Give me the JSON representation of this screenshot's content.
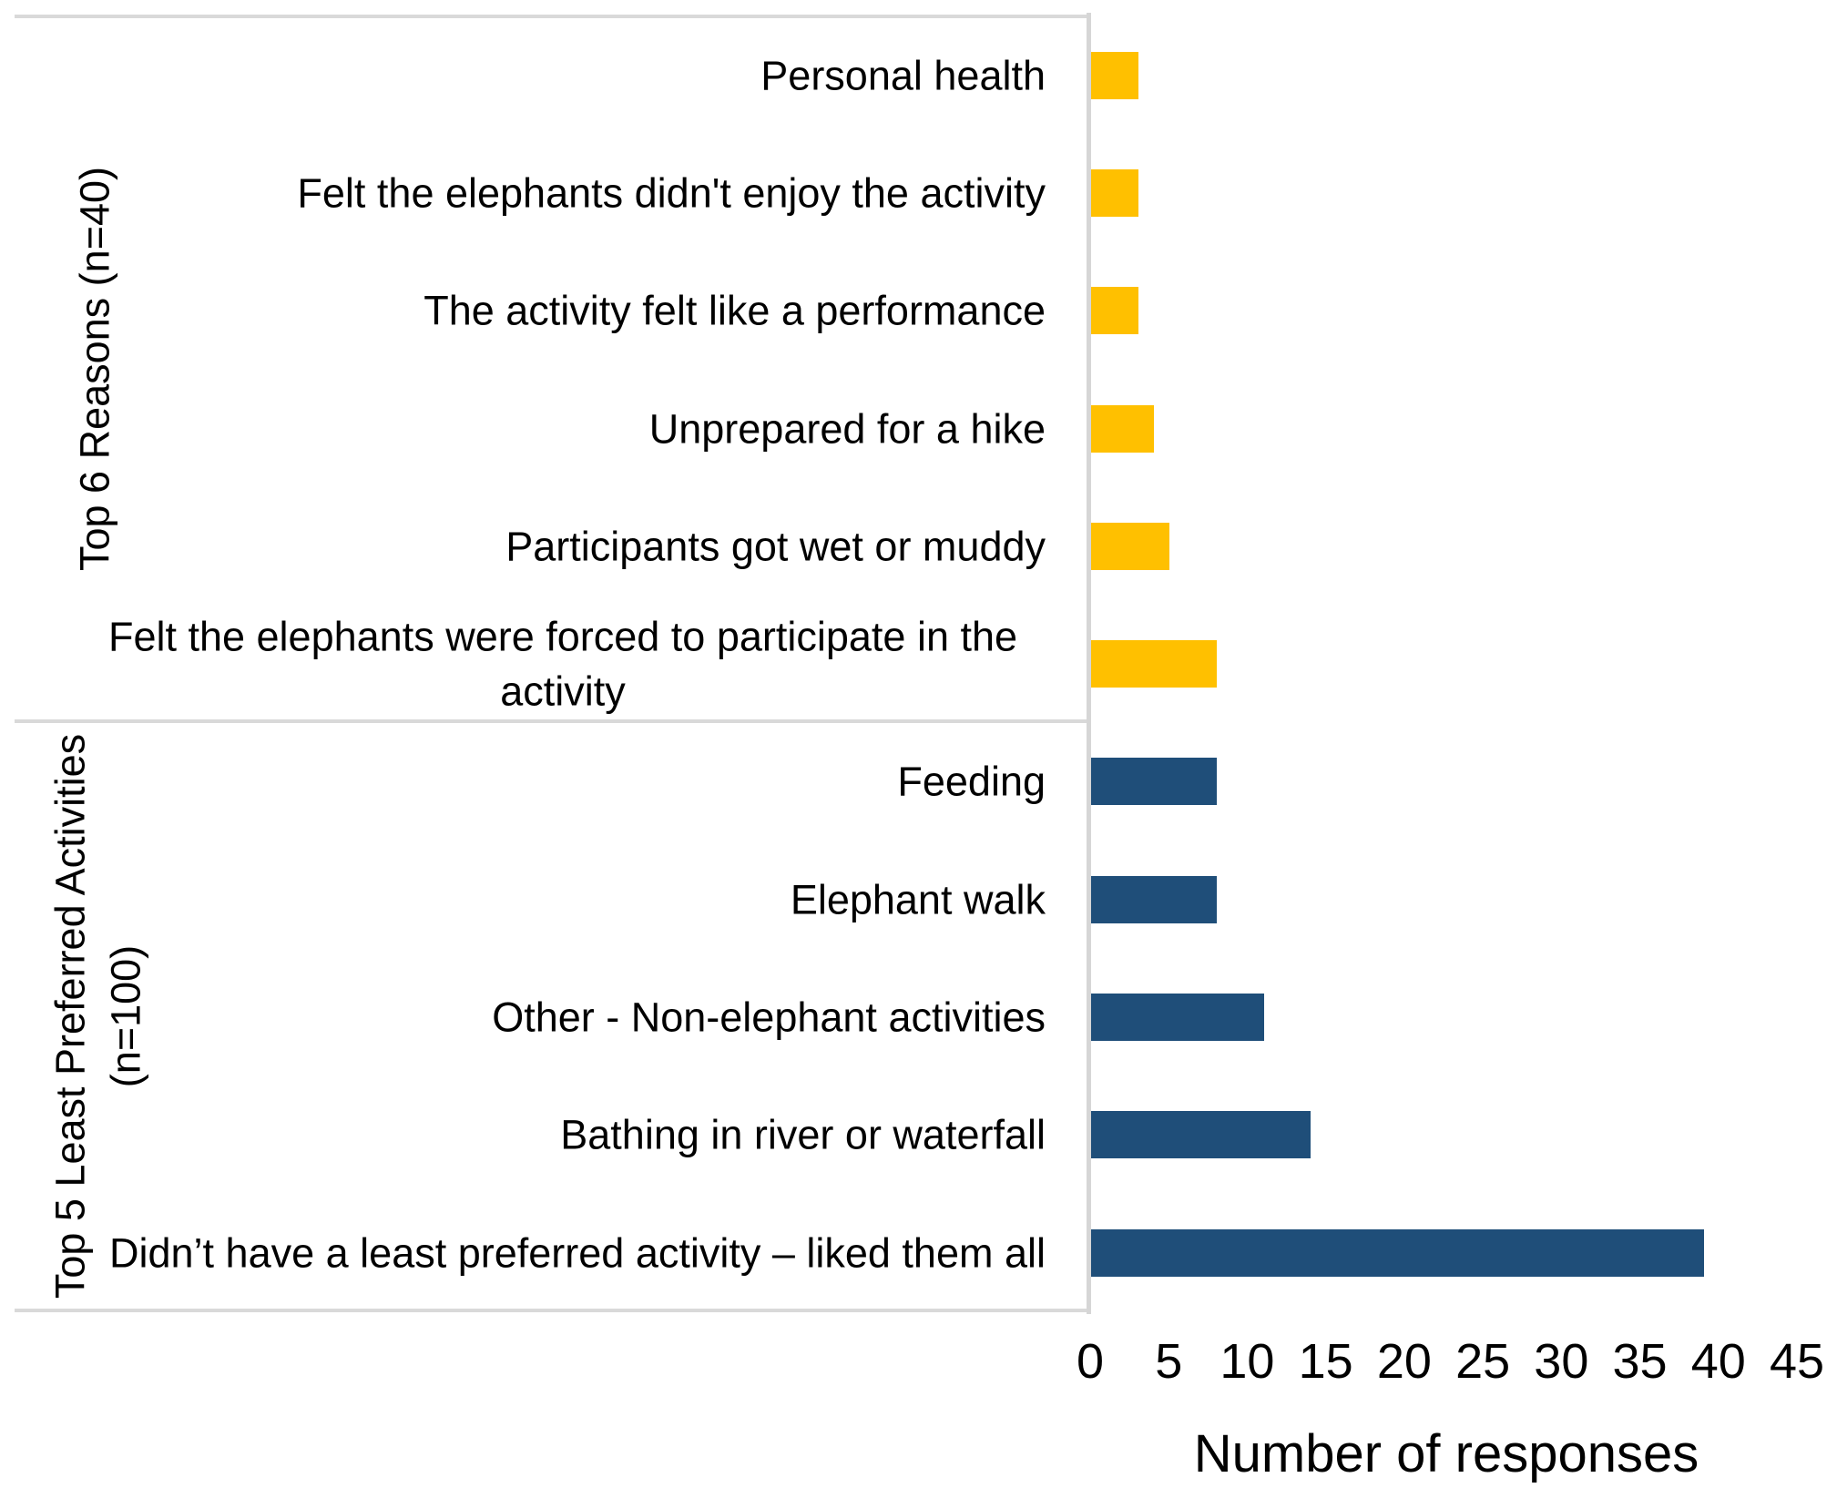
{
  "chart_data": {
    "type": "bar",
    "orientation": "horizontal",
    "xlabel": "Number of responses",
    "xlim": [
      0,
      45
    ],
    "x_ticks": [
      0,
      5,
      10,
      15,
      20,
      25,
      30,
      35,
      40,
      45
    ],
    "grid": false,
    "legend": "none",
    "groups": [
      {
        "label": "Top 6 Reasons (n=40)",
        "color": "#FFC000",
        "items": [
          {
            "category": "Personal health",
            "value": 3
          },
          {
            "category": "Felt the elephants didn't enjoy the activity",
            "value": 3
          },
          {
            "category": "The activity felt like a performance",
            "value": 3
          },
          {
            "category": "Unprepared for a hike",
            "value": 4
          },
          {
            "category": "Participants got wet or muddy",
            "value": 5
          },
          {
            "category": "Felt the elephants were forced to participate in the activity",
            "value": 8
          }
        ]
      },
      {
        "label": "Top 5 Least Preferred Activities (n=100)",
        "color": "#1F4E79",
        "items": [
          {
            "category": "Feeding",
            "value": 8
          },
          {
            "category": "Elephant walk",
            "value": 8
          },
          {
            "category": "Other - Non-elephant activities",
            "value": 11
          },
          {
            "category": "Bathing in river or waterfall",
            "value": 14
          },
          {
            "category": "Didn’t have a least preferred activity – liked them all",
            "value": 39
          }
        ]
      }
    ]
  },
  "colors": {
    "bar_yellow": "#FFC000",
    "bar_blue": "#1F4E79",
    "line_gray": "#D9D9D9",
    "text": "#000000",
    "background": "#FFFFFF"
  }
}
